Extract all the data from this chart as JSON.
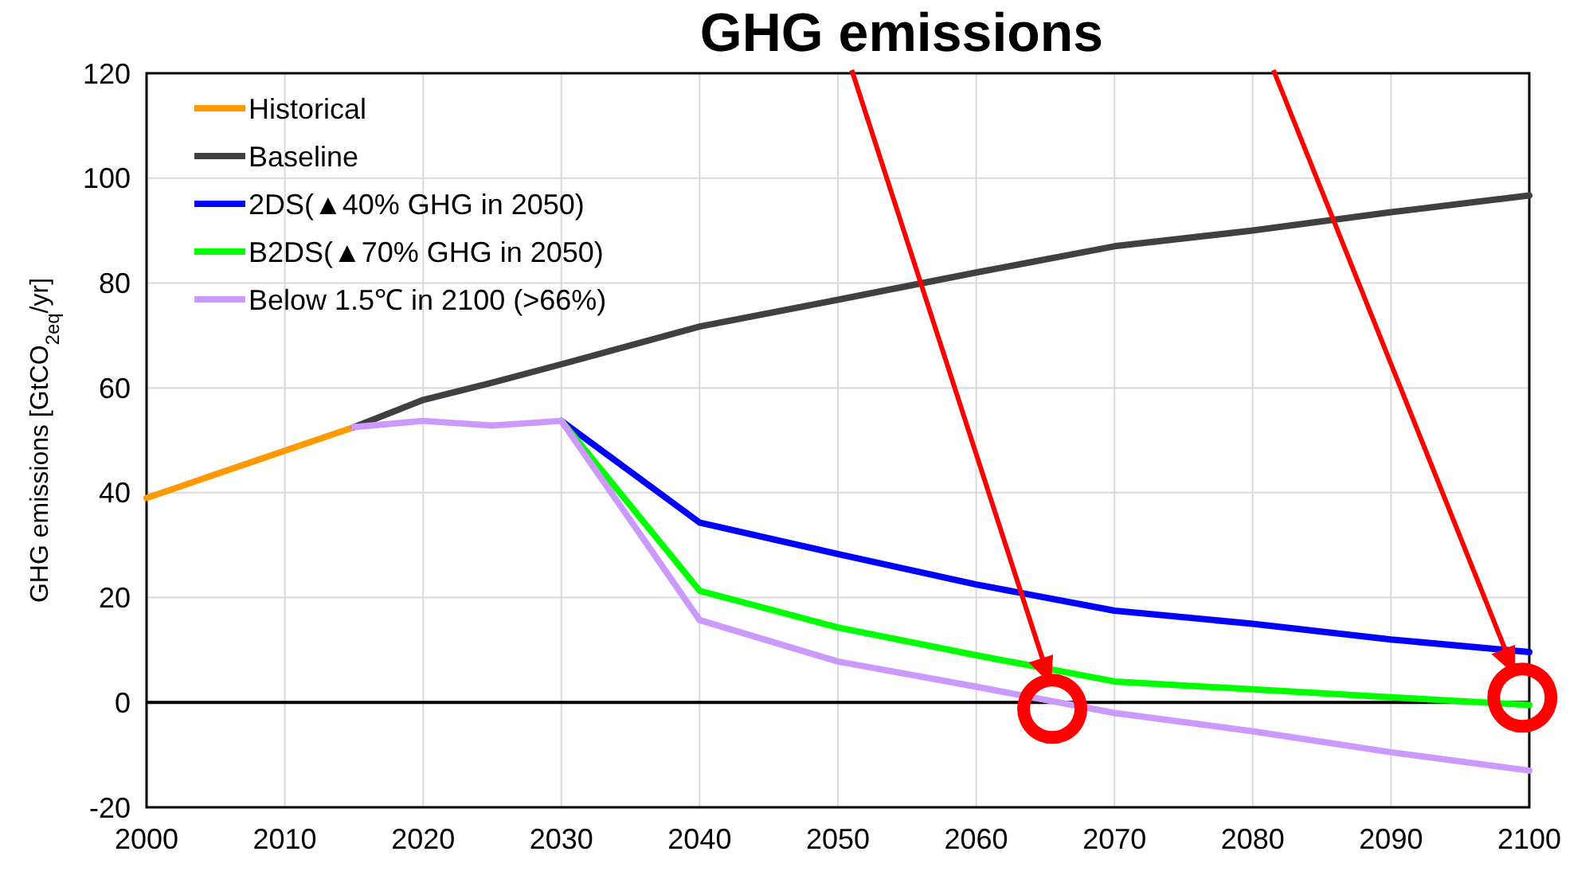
{
  "chart_data": {
    "type": "line",
    "title": "GHG emissions",
    "ylabel": "GHG emissions [GtCO$_{2eq}$/yr]",
    "xlim": [
      2000,
      2100
    ],
    "xticks": [
      2000,
      2010,
      2020,
      2030,
      2040,
      2050,
      2060,
      2070,
      2080,
      2090,
      2100
    ],
    "ylim": [
      -20,
      120
    ],
    "yticks": [
      -20,
      0,
      20,
      40,
      60,
      80,
      100,
      120
    ],
    "grid": true,
    "legend": "top left",
    "marker": "none",
    "line_style": "solid",
    "ref_lines": [
      {
        "axis": "y",
        "value": 0,
        "color": "#000000"
      }
    ],
    "series": [
      {
        "name": "Historical",
        "color": "#ff9900",
        "x": [
          2000,
          2015
        ],
        "values": [
          39,
          52.5
        ]
      },
      {
        "name": "Baseline",
        "color": "#404040",
        "x": [
          2015,
          2020,
          2025,
          2030,
          2040,
          2050,
          2060,
          2070,
          2080,
          2090,
          2100
        ],
        "values": [
          52.5,
          57.7,
          61,
          64.5,
          71.7,
          76.8,
          82,
          87,
          90,
          93.5,
          96.7
        ]
      },
      {
        "name": "2DS(▲40% GHG in 2050)",
        "color": "#0000ff",
        "x": [
          2030,
          2040,
          2050,
          2060,
          2070,
          2080,
          2090,
          2100
        ],
        "values": [
          53.7,
          34.3,
          28.3,
          22.5,
          17.5,
          15,
          12,
          9.6
        ]
      },
      {
        "name": "B2DS(▲70% GHG in 2050)",
        "color": "#00ff00",
        "x": [
          2030,
          2040,
          2050,
          2060,
          2070,
          2080,
          2090,
          2100
        ],
        "values": [
          53.7,
          21.3,
          14.3,
          9,
          4,
          2.5,
          1,
          -0.5
        ]
      },
      {
        "name": "Below 1.5℃ in 2100 (>66%)",
        "color": "#cc99ff",
        "x": [
          2015,
          2020,
          2025,
          2030,
          2040,
          2050,
          2060,
          2070,
          2080,
          2090,
          2100
        ],
        "values": [
          52.5,
          53.7,
          52.8,
          53.7,
          15.7,
          7.8,
          3,
          -2,
          -5.5,
          -9.5,
          -13
        ]
      }
    ]
  }
}
